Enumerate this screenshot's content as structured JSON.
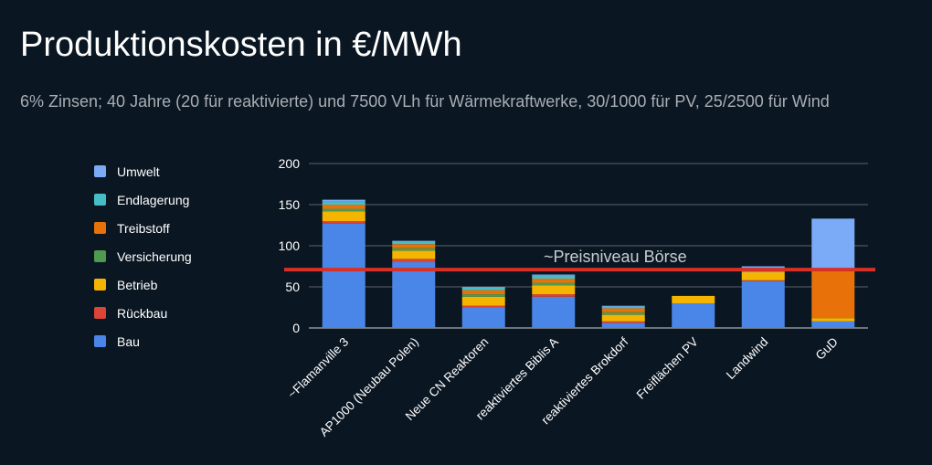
{
  "title": "Produktionskosten in €/MWh",
  "subtitle": "6% Zinsen; 40 Jahre (20 für reaktivierte) und 7500 VLh für Wärmekraftwerke, 30/1000 für PV, 25/2500 für Wind",
  "colors": {
    "background": "#0a1622",
    "text": "#ffffff",
    "grid": "#5f6368",
    "reference_line": "#d93025"
  },
  "chart_data": {
    "type": "bar",
    "stacked": true,
    "categories": [
      "~Flamanville 3",
      "AP1000 (Neubau Polen)",
      "Neue CN Reaktoren",
      "reaktiviertes Biblis A",
      "reaktiviertes Brokdorf",
      "Freiflächen PV",
      "Landwind",
      "GuD"
    ],
    "series": [
      {
        "name": "Bau",
        "color": "#4a86e8",
        "values": [
          127,
          80,
          25,
          38,
          6,
          30,
          57,
          8
        ]
      },
      {
        "name": "Rückbau",
        "color": "#db4437",
        "values": [
          3,
          4,
          2,
          3,
          2,
          0,
          1,
          0
        ]
      },
      {
        "name": "Betrieb",
        "color": "#f4b400",
        "values": [
          12,
          10,
          11,
          11,
          8,
          9,
          10,
          4
        ]
      },
      {
        "name": "Versicherung",
        "color": "#4e9a4e",
        "values": [
          3,
          3,
          3,
          3,
          3,
          0,
          0,
          0
        ]
      },
      {
        "name": "Treibstoff",
        "color": "#e8710a",
        "values": [
          5,
          5,
          5,
          5,
          5,
          0,
          0,
          59
        ]
      },
      {
        "name": "Endlagerung",
        "color": "#46bdc6",
        "values": [
          4,
          3,
          3,
          4,
          2,
          0,
          0,
          0
        ]
      },
      {
        "name": "Umwelt",
        "color": "#7baaf7",
        "values": [
          2,
          1,
          1,
          1,
          1,
          0,
          7,
          62
        ]
      }
    ],
    "legend_order": [
      "Umwelt",
      "Endlagerung",
      "Treibstoff",
      "Versicherung",
      "Betrieb",
      "Rückbau",
      "Bau"
    ],
    "yticks": [
      "0",
      "50",
      "100",
      "150",
      "200"
    ],
    "ylim": [
      0,
      200
    ],
    "grid": true,
    "legend_position": "left",
    "reference_line": {
      "value": 71,
      "label": "~Preisniveau Börse"
    }
  }
}
